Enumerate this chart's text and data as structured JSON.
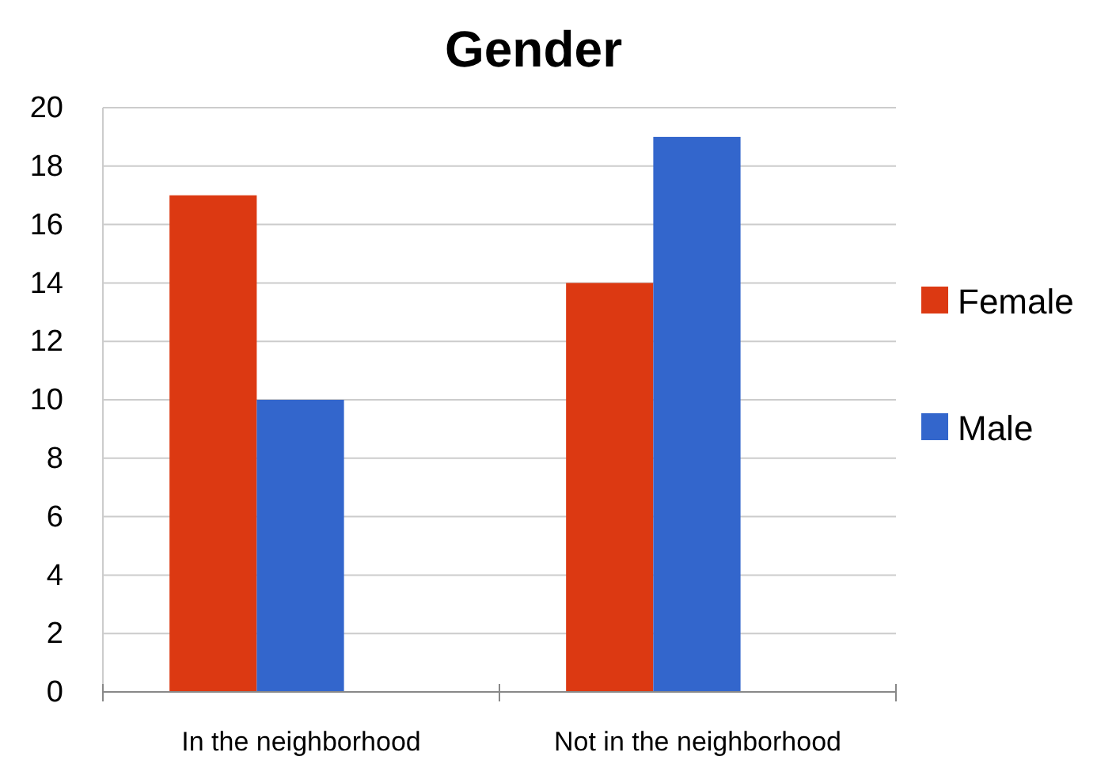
{
  "chart_data": {
    "type": "bar",
    "title": "Gender",
    "categories": [
      "In the neighborhood",
      "Not in the neighborhood"
    ],
    "series": [
      {
        "name": "Female",
        "color": "#dc3912",
        "values": [
          17,
          14
        ]
      },
      {
        "name": "Male",
        "color": "#3366cc",
        "values": [
          10,
          19
        ]
      }
    ],
    "ylim": [
      0,
      20
    ],
    "yticks": [
      0,
      2,
      4,
      6,
      8,
      10,
      12,
      14,
      16,
      18,
      20
    ],
    "grid": "y",
    "legend": "right"
  }
}
